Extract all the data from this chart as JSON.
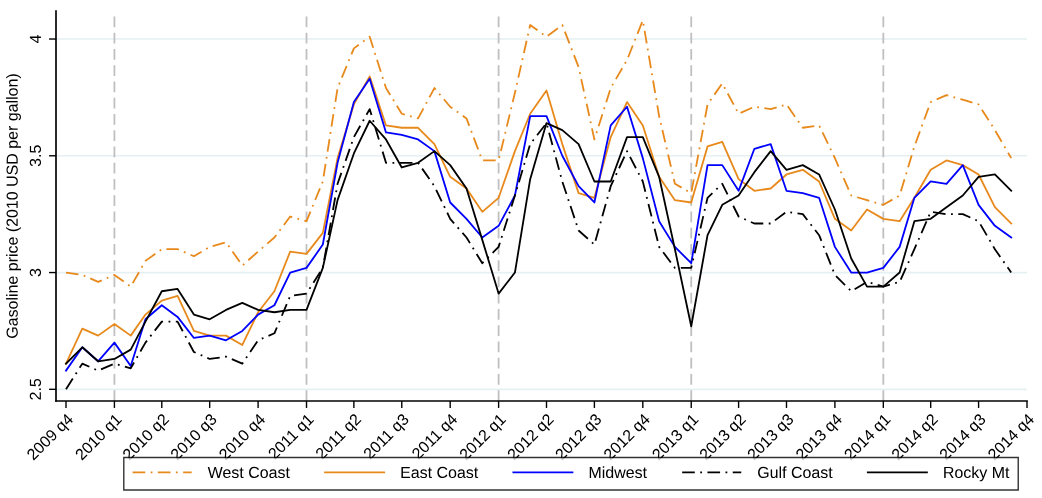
{
  "chart_data": {
    "type": "line",
    "ylabel": "Gasoline price (2010 USD per gallon)",
    "x": [
      "2009-10",
      "2009-11",
      "2009-12",
      "2010-01",
      "2010-02",
      "2010-03",
      "2010-04",
      "2010-05",
      "2010-06",
      "2010-07",
      "2010-08",
      "2010-09",
      "2010-10",
      "2010-11",
      "2010-12",
      "2011-01",
      "2011-02",
      "2011-03",
      "2011-04",
      "2011-05",
      "2011-06",
      "2011-07",
      "2011-08",
      "2011-09",
      "2011-10",
      "2011-11",
      "2011-12",
      "2012-01",
      "2012-02",
      "2012-03",
      "2012-04",
      "2012-05",
      "2012-06",
      "2012-07",
      "2012-08",
      "2012-09",
      "2012-10",
      "2012-11",
      "2012-12",
      "2013-01",
      "2013-02",
      "2013-03",
      "2013-04",
      "2013-05",
      "2013-06",
      "2013-07",
      "2013-08",
      "2013-09",
      "2013-10",
      "2013-11",
      "2013-12",
      "2014-01",
      "2014-02",
      "2014-03",
      "2014-04",
      "2014-05",
      "2014-06",
      "2014-07",
      "2014-08",
      "2014-09"
    ],
    "series": [
      {
        "name": "West Coast",
        "color": "#e8891c",
        "line_style": "dashdot",
        "values": [
          3.0,
          2.99,
          2.96,
          2.99,
          2.94,
          3.05,
          3.1,
          3.1,
          3.07,
          3.11,
          3.13,
          3.03,
          3.09,
          3.15,
          3.24,
          3.22,
          3.39,
          3.79,
          3.96,
          4.01,
          3.79,
          3.68,
          3.66,
          3.79,
          3.71,
          3.66,
          3.48,
          3.48,
          3.77,
          4.06,
          4.01,
          4.06,
          3.88,
          3.57,
          3.79,
          3.91,
          4.08,
          3.67,
          3.38,
          3.34,
          3.72,
          3.81,
          3.68,
          3.71,
          3.7,
          3.72,
          3.62,
          3.63,
          3.49,
          3.33,
          3.31,
          3.29,
          3.33,
          3.54,
          3.73,
          3.76,
          3.74,
          3.72,
          3.61,
          3.49
        ]
      },
      {
        "name": "East Coast",
        "color": "#e8891c",
        "line_style": "solid",
        "values": [
          2.61,
          2.76,
          2.73,
          2.78,
          2.73,
          2.82,
          2.88,
          2.9,
          2.75,
          2.73,
          2.73,
          2.69,
          2.83,
          2.92,
          3.09,
          3.08,
          3.17,
          3.49,
          3.72,
          3.84,
          3.63,
          3.62,
          3.62,
          3.55,
          3.41,
          3.36,
          3.26,
          3.32,
          3.52,
          3.68,
          3.78,
          3.55,
          3.34,
          3.32,
          3.58,
          3.73,
          3.63,
          3.41,
          3.31,
          3.3,
          3.54,
          3.56,
          3.4,
          3.35,
          3.36,
          3.42,
          3.44,
          3.39,
          3.23,
          3.18,
          3.27,
          3.23,
          3.22,
          3.32,
          3.44,
          3.48,
          3.46,
          3.42,
          3.28,
          3.21
        ]
      },
      {
        "name": "Midwest",
        "color": "#0000ff",
        "line_style": "solid",
        "values": [
          2.58,
          2.68,
          2.62,
          2.7,
          2.6,
          2.8,
          2.86,
          2.81,
          2.72,
          2.73,
          2.71,
          2.75,
          2.82,
          2.86,
          3.0,
          3.02,
          3.12,
          3.47,
          3.73,
          3.83,
          3.6,
          3.59,
          3.57,
          3.52,
          3.3,
          3.23,
          3.15,
          3.2,
          3.33,
          3.67,
          3.67,
          3.5,
          3.37,
          3.3,
          3.63,
          3.71,
          3.49,
          3.22,
          3.11,
          3.04,
          3.46,
          3.46,
          3.35,
          3.53,
          3.55,
          3.35,
          3.34,
          3.32,
          3.11,
          3.0,
          3.0,
          3.02,
          3.11,
          3.32,
          3.39,
          3.38,
          3.46,
          3.29,
          3.2,
          3.15
        ]
      },
      {
        "name": "Gulf Coast",
        "color": "#000000",
        "line_style": "dashdot",
        "values": [
          2.5,
          2.61,
          2.58,
          2.61,
          2.59,
          2.7,
          2.79,
          2.79,
          2.66,
          2.63,
          2.64,
          2.61,
          2.71,
          2.74,
          2.9,
          2.91,
          3.02,
          3.38,
          3.58,
          3.7,
          3.47,
          3.47,
          3.47,
          3.37,
          3.23,
          3.15,
          3.04,
          3.11,
          3.33,
          3.55,
          3.64,
          3.39,
          3.18,
          3.12,
          3.37,
          3.52,
          3.39,
          3.11,
          3.02,
          3.02,
          3.32,
          3.38,
          3.24,
          3.21,
          3.21,
          3.26,
          3.25,
          3.16,
          2.99,
          2.92,
          2.96,
          2.94,
          2.96,
          3.1,
          3.26,
          3.25,
          3.25,
          3.22,
          3.1,
          3.0
        ]
      },
      {
        "name": "Rocky Mt",
        "color": "#000000",
        "line_style": "solid",
        "values": [
          2.61,
          2.68,
          2.62,
          2.63,
          2.67,
          2.79,
          2.92,
          2.93,
          2.82,
          2.8,
          2.84,
          2.87,
          2.84,
          2.83,
          2.84,
          2.84,
          3.02,
          3.31,
          3.51,
          3.65,
          3.57,
          3.45,
          3.47,
          3.52,
          3.46,
          3.36,
          3.14,
          2.91,
          3.0,
          3.4,
          3.64,
          3.61,
          3.55,
          3.39,
          3.39,
          3.58,
          3.58,
          3.41,
          3.1,
          2.77,
          3.16,
          3.29,
          3.33,
          3.43,
          3.52,
          3.44,
          3.46,
          3.42,
          3.27,
          3.06,
          2.94,
          2.94,
          3.0,
          3.22,
          3.23,
          3.28,
          3.33,
          3.41,
          3.42,
          3.35
        ]
      }
    ],
    "xlim": [
      "2009-09-12",
      "2014-10"
    ],
    "xticks": [
      {
        "value": "2009-10",
        "label": "2009 q4"
      },
      {
        "value": "2010-01",
        "label": "2010 q1"
      },
      {
        "value": "2010-04",
        "label": "2010 q2"
      },
      {
        "value": "2010-07",
        "label": "2010 q3"
      },
      {
        "value": "2010-10",
        "label": "2010 q4"
      },
      {
        "value": "2011-01",
        "label": "2011 q1"
      },
      {
        "value": "2011-04",
        "label": "2011 q2"
      },
      {
        "value": "2011-07",
        "label": "2011 q3"
      },
      {
        "value": "2011-10",
        "label": "2011 q4"
      },
      {
        "value": "2012-01",
        "label": "2012 q1"
      },
      {
        "value": "2012-04",
        "label": "2012 q2"
      },
      {
        "value": "2012-07",
        "label": "2012 q3"
      },
      {
        "value": "2012-10",
        "label": "2012 q4"
      },
      {
        "value": "2013-01",
        "label": "2013 q1"
      },
      {
        "value": "2013-04",
        "label": "2013 q2"
      },
      {
        "value": "2013-07",
        "label": "2013 q3"
      },
      {
        "value": "2013-10",
        "label": "2013 q4"
      },
      {
        "value": "2014-01",
        "label": "2014 q1"
      },
      {
        "value": "2014-04",
        "label": "2014 q2"
      },
      {
        "value": "2014-07",
        "label": "2014 q3"
      },
      {
        "value": "2014-10",
        "label": "2014 q4"
      }
    ],
    "ylim": [
      2.45,
      4.12
    ],
    "yticks": [
      2.5,
      3,
      3.5,
      4
    ],
    "ref_lines": [
      {
        "axis": "x",
        "value": "2010-01",
        "color": "#c0c0c0",
        "line_style": "dashed"
      },
      {
        "axis": "x",
        "value": "2011-01",
        "color": "#c0c0c0",
        "line_style": "dashed"
      },
      {
        "axis": "x",
        "value": "2012-01",
        "color": "#c0c0c0",
        "line_style": "dashed"
      },
      {
        "axis": "x",
        "value": "2013-01",
        "color": "#c0c0c0",
        "line_style": "dashed"
      },
      {
        "axis": "x",
        "value": "2014-01",
        "color": "#c0c0c0",
        "line_style": "dashed"
      }
    ],
    "grid": "y",
    "legend": "bottom",
    "marker": "none"
  }
}
